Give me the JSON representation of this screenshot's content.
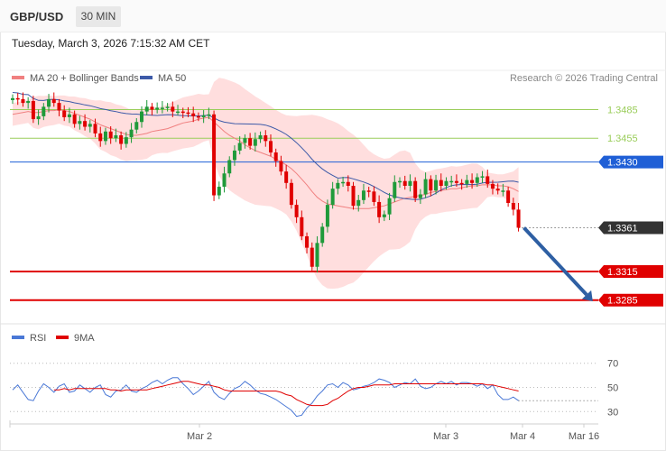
{
  "header": {
    "symbol": "GBP/USD",
    "timeframe": "30 MIN",
    "datetime": "Tuesday, March 3, 2026 7:15:32 AM CET"
  },
  "legend": {
    "ma20_label": "MA 20 + Bollinger Bands",
    "ma50_label": "MA 50",
    "credit": "Research © 2026 Trading Central",
    "rsi_label": "RSI",
    "ma9_label": "9MA"
  },
  "colors": {
    "up": "#1f9a3a",
    "down": "#e00000",
    "ma20": "#f08080",
    "ma50": "#3d5aa8",
    "band": "#ffd8d8",
    "resistance": "#9acd5a",
    "pivot": "#1f5fd6",
    "support": "#e00000",
    "arrow": "#2e5fa3",
    "rsi": "#4a78d6",
    "rsi_ma": "#e00000"
  },
  "chart_data": [
    {
      "type": "candlestick",
      "ylim": [
        1.3262,
        1.3512
      ],
      "x_ticks": [
        "Mar 2",
        "Mar 3",
        "Mar 4",
        "Mar 16"
      ],
      "levels": [
        {
          "label": "1.3485",
          "value": 1.3485,
          "kind": "resistance"
        },
        {
          "label": "1.3455",
          "value": 1.3455,
          "kind": "resistance"
        },
        {
          "label": "1.3430",
          "value": 1.343,
          "kind": "pivot"
        },
        {
          "label": "1.3361",
          "value": 1.3361,
          "kind": "last"
        },
        {
          "label": "1.3315",
          "value": 1.3315,
          "kind": "support"
        },
        {
          "label": "1.3285",
          "value": 1.3285,
          "kind": "support"
        }
      ],
      "close": [
        1.3497,
        1.3496,
        1.3492,
        1.3494,
        1.3475,
        1.3478,
        1.3488,
        1.3496,
        1.3492,
        1.3484,
        1.3477,
        1.348,
        1.347,
        1.3473,
        1.3467,
        1.347,
        1.346,
        1.3452,
        1.3462,
        1.3455,
        1.3458,
        1.3449,
        1.3456,
        1.3464,
        1.3472,
        1.3483,
        1.3488,
        1.3485,
        1.3487,
        1.3487,
        1.3488,
        1.3483,
        1.3483,
        1.3482,
        1.3481,
        1.3478,
        1.3477,
        1.3479,
        1.348,
        1.3395,
        1.3404,
        1.3418,
        1.3432,
        1.3442,
        1.345,
        1.3455,
        1.3447,
        1.3454,
        1.3458,
        1.3452,
        1.344,
        1.3431,
        1.342,
        1.3408,
        1.3385,
        1.3372,
        1.3352,
        1.334,
        1.332,
        1.3345,
        1.3362,
        1.3385,
        1.3402,
        1.3408,
        1.3409,
        1.3405,
        1.3384,
        1.339,
        1.34,
        1.3399,
        1.3388,
        1.3372,
        1.3375,
        1.3392,
        1.3409,
        1.341,
        1.3405,
        1.341,
        1.3392,
        1.3396,
        1.3412,
        1.34,
        1.3411,
        1.3405,
        1.341,
        1.341,
        1.3408,
        1.3407,
        1.3411,
        1.3408,
        1.3414,
        1.3415,
        1.3407,
        1.3402,
        1.34,
        1.34,
        1.3387,
        1.338,
        1.3361
      ],
      "ma20": [
        1.348,
        1.3481,
        1.3482,
        1.3483,
        1.3482,
        1.3482,
        1.3483,
        1.3484,
        1.3484,
        1.3485,
        1.3484,
        1.3483,
        1.3481,
        1.3479,
        1.3477,
        1.3475,
        1.3472,
        1.3469,
        1.3467,
        1.3465,
        1.3463,
        1.3461,
        1.3459,
        1.3458,
        1.3458,
        1.3459,
        1.346,
        1.3462,
        1.3463,
        1.3464,
        1.3465,
        1.3467,
        1.3469,
        1.3471,
        1.3472,
        1.3473,
        1.3475,
        1.3476,
        1.3477,
        1.3472,
        1.3467,
        1.3462,
        1.3458,
        1.3455,
        1.3452,
        1.3448,
        1.3445,
        1.3442,
        1.344,
        1.3438,
        1.3436,
        1.3433,
        1.343,
        1.3427,
        1.3423,
        1.3418,
        1.3412,
        1.3406,
        1.3399,
        1.3393,
        1.3389,
        1.3386,
        1.3385,
        1.3384,
        1.3383,
        1.3382,
        1.3381,
        1.3381,
        1.3381,
        1.3381,
        1.3382,
        1.3383,
        1.3384,
        1.3386,
        1.3388,
        1.339,
        1.3392,
        1.3393,
        1.3394,
        1.3395,
        1.3396,
        1.3398,
        1.3399,
        1.34,
        1.3401,
        1.3402,
        1.3402,
        1.3403,
        1.3404,
        1.3405,
        1.3405,
        1.3406,
        1.3406,
        1.3406,
        1.3405,
        1.3405,
        1.3404,
        1.3402,
        1.3399
      ]
    },
    {
      "type": "line",
      "name": "RSI",
      "ylim": [
        22,
        78
      ],
      "y_ticks": [
        70,
        50,
        30
      ],
      "values": [
        48,
        52,
        46,
        40,
        39,
        47,
        53,
        50,
        46,
        51,
        53,
        46,
        47,
        52,
        49,
        46,
        50,
        52,
        44,
        42,
        47,
        48,
        52,
        47,
        46,
        49,
        51,
        54,
        56,
        53,
        56,
        58,
        58,
        53,
        49,
        44,
        47,
        51,
        55,
        46,
        42,
        40,
        45,
        49,
        51,
        55,
        52,
        48,
        45,
        44,
        42,
        40,
        37,
        34,
        31,
        26,
        27,
        33,
        37,
        43,
        47,
        52,
        53,
        50,
        54,
        52,
        48,
        49,
        51,
        52,
        54,
        57,
        56,
        54,
        50,
        52,
        54,
        53,
        57,
        51,
        49,
        50,
        53,
        55,
        53,
        55,
        52,
        54,
        54,
        53,
        51,
        53,
        49,
        52,
        44,
        40,
        40,
        42,
        39
      ],
      "ma9": [
        null,
        null,
        null,
        null,
        null,
        null,
        null,
        null,
        48,
        48,
        49,
        48,
        49,
        49,
        49,
        49,
        49,
        49,
        49,
        48,
        48,
        47,
        48,
        48,
        48,
        48,
        48,
        49,
        50,
        51,
        52,
        53,
        54,
        55,
        55,
        54,
        53,
        52,
        52,
        51,
        50,
        48,
        47,
        47,
        47,
        47,
        47,
        47,
        47,
        47,
        47,
        47,
        46,
        44,
        43,
        40,
        38,
        36,
        35,
        35,
        35,
        36,
        39,
        41,
        44,
        47,
        49,
        50,
        50,
        51,
        52,
        52,
        52,
        52,
        53,
        53,
        53,
        53,
        53,
        53,
        53,
        53,
        53,
        53,
        53,
        53,
        53,
        53,
        53,
        53,
        53,
        53,
        52,
        52,
        51,
        50,
        49,
        48,
        47
      ]
    }
  ]
}
